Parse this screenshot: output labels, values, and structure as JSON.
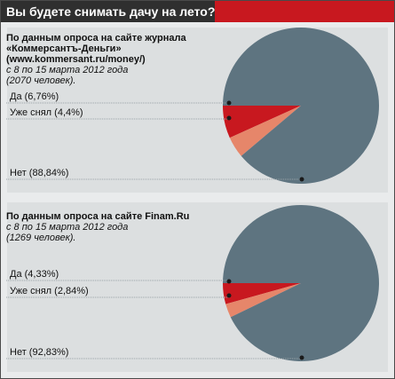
{
  "question": "Вы будете снимать дачу на лето?",
  "colors": {
    "yes": "#c8181f",
    "rented": "#e6866a",
    "no": "#5e7480",
    "header": "#2f2f2f",
    "accent": "#c8181f"
  },
  "surveys": [
    {
      "lines_bold": [
        "По данным опроса на сайте журнала",
        "«Коммерсантъ-Деньги»",
        "(www.kommersant.ru/money/)"
      ],
      "lines_italic": [
        "с 8 по 15 марта 2012 года",
        "(2070 человек)."
      ]
    },
    {
      "lines_bold": [
        "По данным опроса на сайте Finam.Ru"
      ],
      "lines_italic": [
        "с 8 по 15 марта 2012 года",
        "(1269 человек)."
      ]
    }
  ],
  "chart_data": [
    {
      "type": "pie",
      "categories": [
        "Да",
        "Уже снял",
        "Нет"
      ],
      "values": [
        6.76,
        4.4,
        88.84
      ],
      "labels": [
        "Да (6,76%)",
        "Уже снял (4,4%)",
        "Нет (88,84%)"
      ]
    },
    {
      "type": "pie",
      "categories": [
        "Да",
        "Уже снял",
        "Нет"
      ],
      "values": [
        4.33,
        2.84,
        92.83
      ],
      "labels": [
        "Да (4,33%)",
        "Уже снял (2,84%)",
        "Нет (92,83%)"
      ]
    }
  ]
}
